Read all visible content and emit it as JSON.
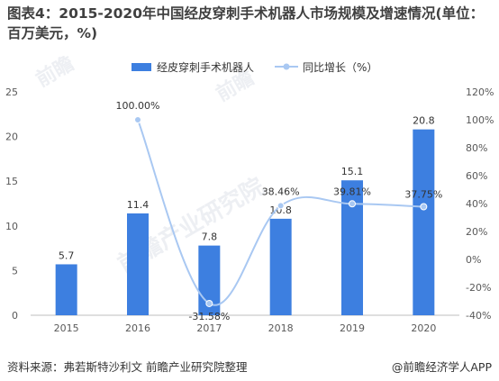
{
  "title": "图表4：2015-2020年中国经皮穿刺手术机器人市场规模及增速情况(单位：百万美元，%)",
  "watermarks": [
    "前瞻产业研究院",
    "前瞻",
    "前瞻"
  ],
  "source": "资料来源：弗若斯特沙利文 前瞻产业研究院整理",
  "brand": "@前瞻经济学人APP",
  "colors": {
    "bar": "#3d7fe0",
    "line": "#a9c8f2",
    "axis": "#bfbfbf"
  },
  "chart_data": {
    "type": "bar",
    "categories": [
      "2015",
      "2016",
      "2017",
      "2018",
      "2019",
      "2020"
    ],
    "series": [
      {
        "name": "经皮穿刺手术机器人",
        "type": "bar",
        "axis": "left",
        "values": [
          5.7,
          11.4,
          7.8,
          10.8,
          15.1,
          20.8
        ],
        "labels": [
          "5.7",
          "11.4",
          "7.8",
          "10.8",
          "15.1",
          "20.8"
        ]
      },
      {
        "name": "同比增长（%）",
        "type": "line",
        "axis": "right",
        "values": [
          null,
          100.0,
          -31.58,
          38.46,
          39.81,
          37.75
        ],
        "labels": [
          "",
          "100.00%",
          "-31.58%",
          "38.46%",
          "39.81%",
          "37.75%"
        ]
      }
    ],
    "ylim_left": [
      0,
      25
    ],
    "yticks_left": [
      "0",
      "5",
      "10",
      "15",
      "20",
      "25"
    ],
    "ylim_right": [
      -40,
      120
    ],
    "yticks_right": [
      "-40%",
      "-20%",
      "0%",
      "20%",
      "40%",
      "60%",
      "80%",
      "100%",
      "120%"
    ],
    "legend_position": "top-center",
    "grid": false
  }
}
